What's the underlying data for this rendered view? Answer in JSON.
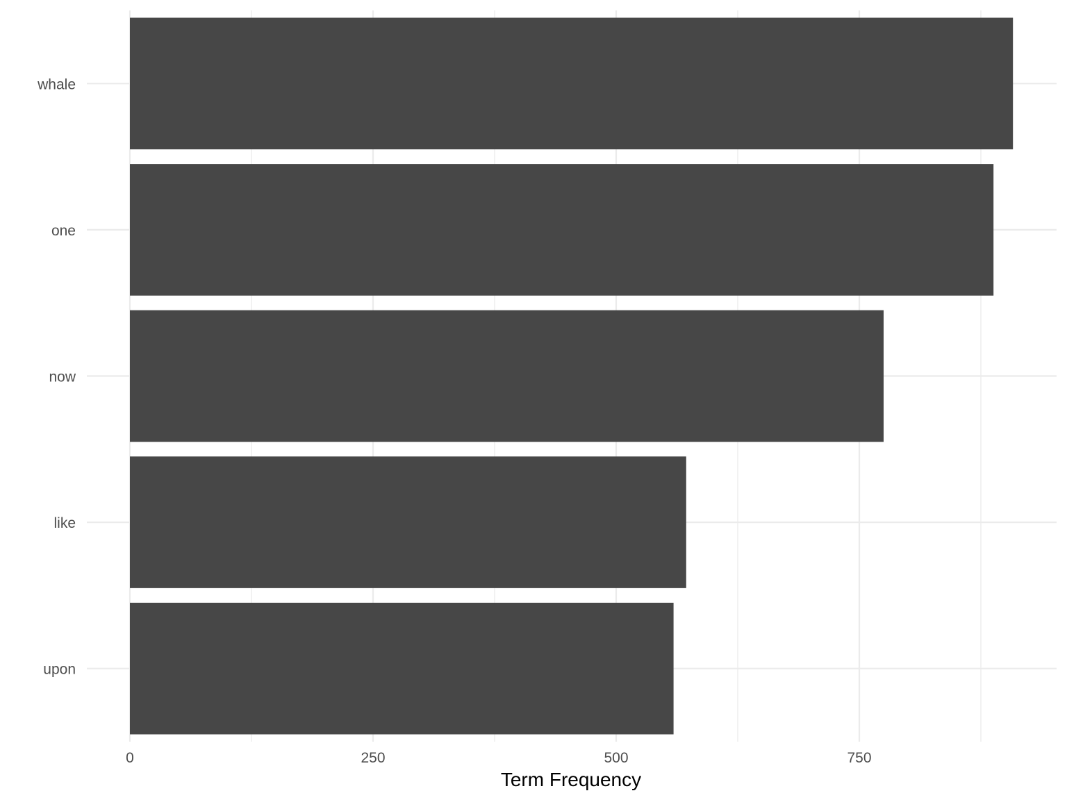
{
  "chart_data": {
    "type": "bar",
    "orientation": "horizontal",
    "categories": [
      "whale",
      "one",
      "now",
      "like",
      "upon"
    ],
    "values": [
      908,
      888,
      775,
      572,
      559
    ],
    "title": "",
    "xlabel": "Term Frequency",
    "ylabel": "",
    "xlim": [
      0,
      954
    ],
    "xticks": [
      0,
      250,
      500,
      750
    ],
    "grid": true,
    "legend": "none",
    "colors": {
      "bar": "#474747",
      "grid": "#ebebeb",
      "tick_text": "#4d4d4d",
      "background": "#ffffff"
    }
  }
}
